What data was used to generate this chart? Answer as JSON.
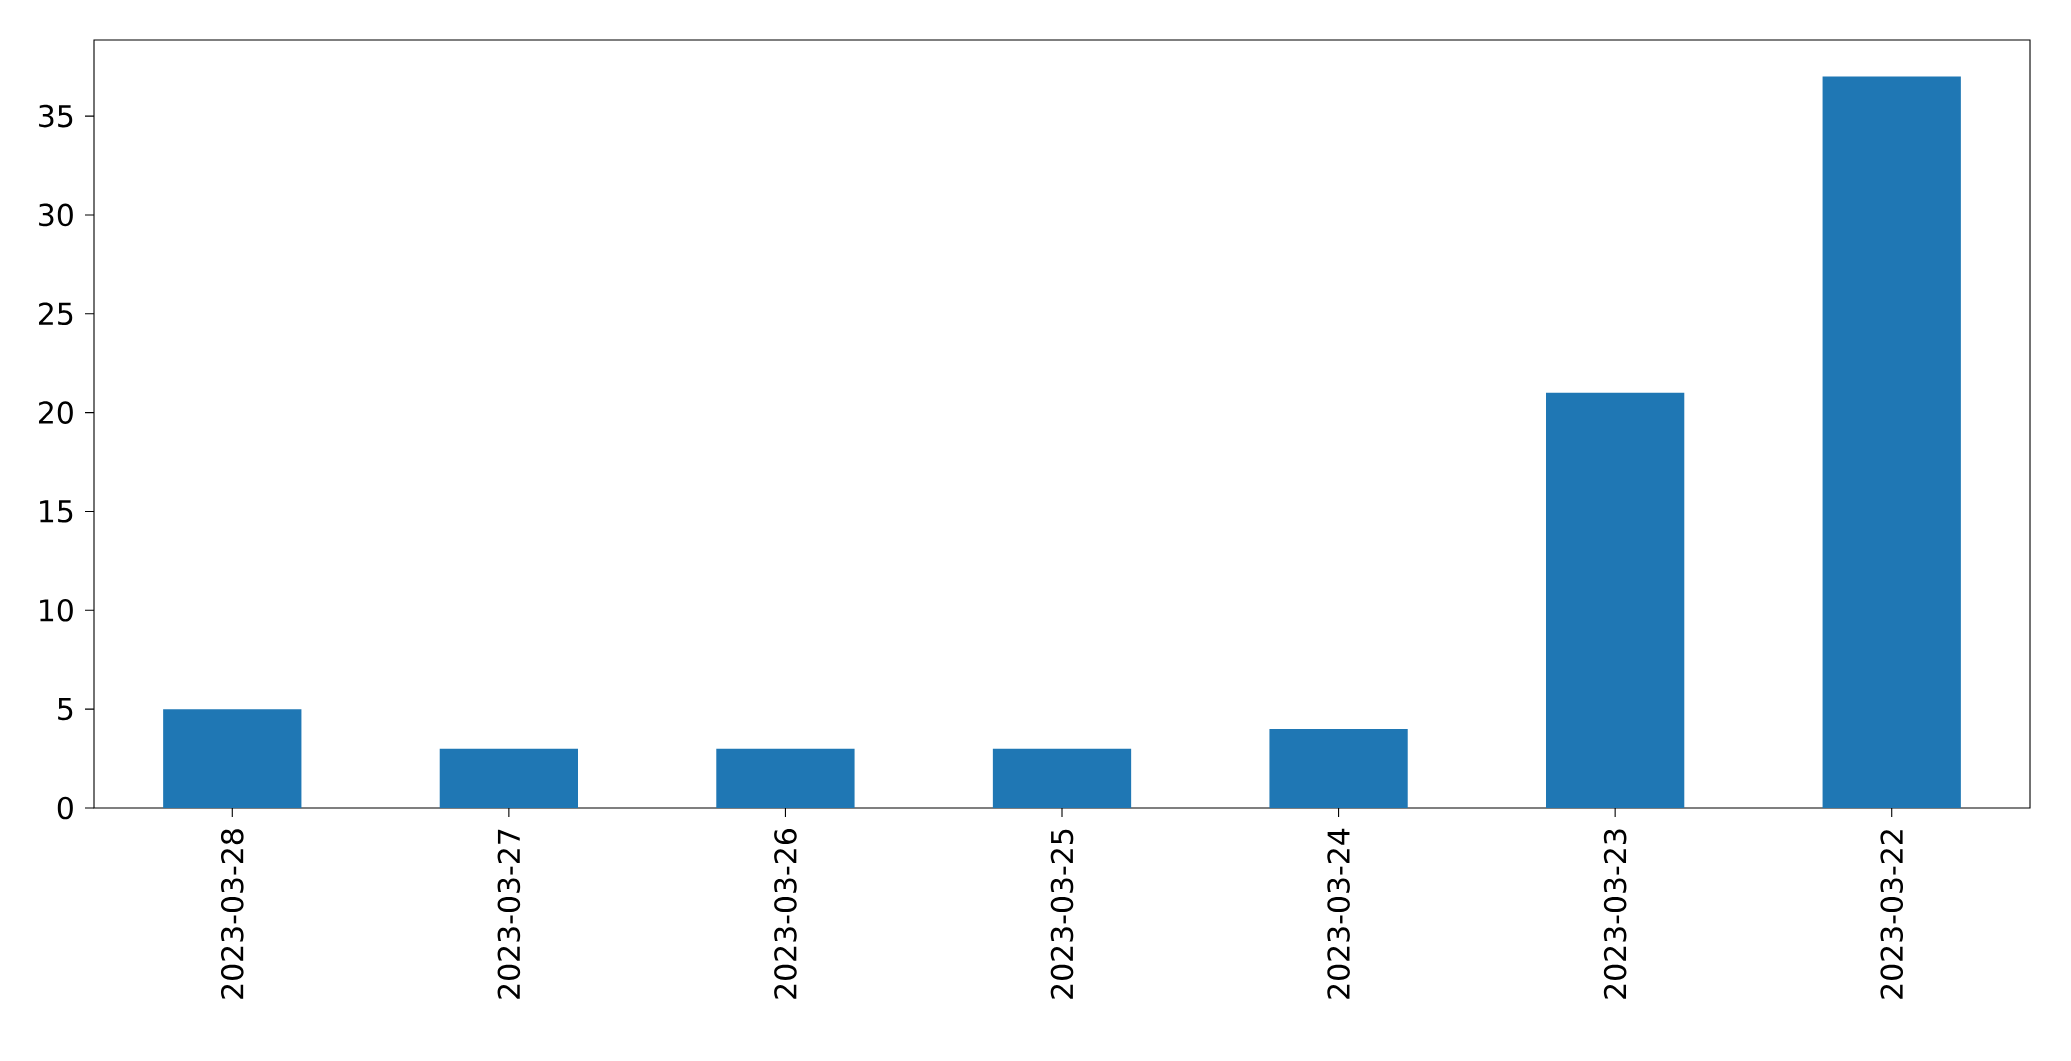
{
  "chart_data": {
    "type": "bar",
    "categories": [
      "2023-03-28",
      "2023-03-27",
      "2023-03-26",
      "2023-03-25",
      "2023-03-24",
      "2023-03-23",
      "2023-03-22"
    ],
    "values": [
      5,
      3,
      3,
      3,
      4,
      21,
      37
    ],
    "color": "#1f77b4",
    "ylim": [
      0,
      38.85
    ],
    "yticks": [
      0,
      5,
      10,
      15,
      20,
      25,
      30,
      35
    ],
    "grid": false
  }
}
